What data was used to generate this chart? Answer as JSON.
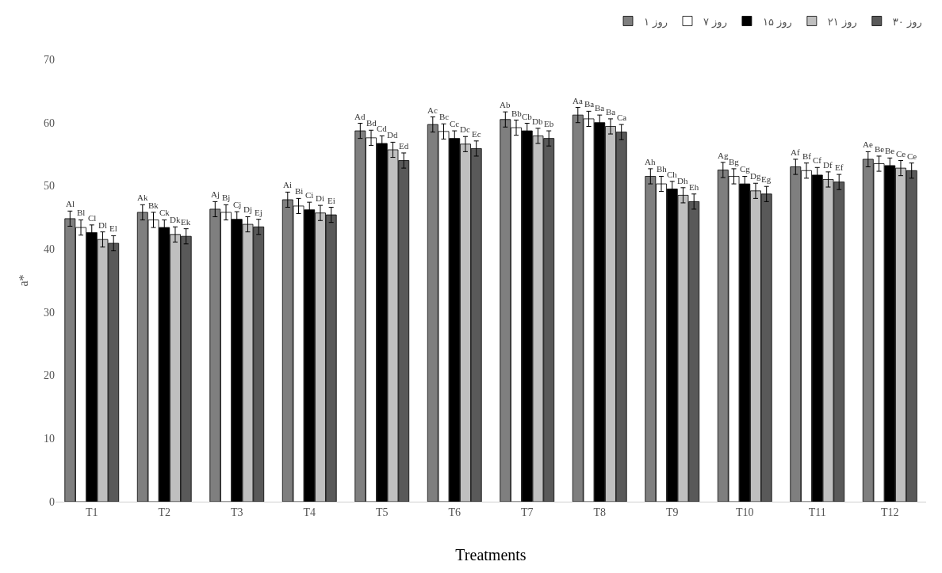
{
  "chart_data": {
    "type": "bar",
    "xlabel": "Treatments",
    "ylabel": "a*",
    "categories": [
      "T1",
      "T2",
      "T3",
      "T4",
      "T5",
      "T6",
      "T7",
      "T8",
      "T9",
      "T10",
      "T11",
      "T12"
    ],
    "ylim": [
      0,
      70
    ],
    "yticks": [
      0,
      10,
      20,
      30,
      40,
      50,
      60,
      70
    ],
    "legend": "top right",
    "series": [
      {
        "name": "روز ۱",
        "color": "#7f7f7f",
        "values": [
          44.8,
          45.8,
          46.3,
          47.8,
          58.7,
          59.7,
          60.5,
          61.2,
          51.5,
          52.5,
          53.0,
          54.2
        ],
        "errors": [
          1.2,
          1.2,
          1.2,
          1.2,
          1.2,
          1.2,
          1.2,
          1.2,
          1.2,
          1.2,
          1.2,
          1.2
        ],
        "value_labels": [
          "Al",
          "Ak",
          "Aj",
          "Ai",
          "Ad",
          "Ac",
          "Ab",
          "Aa",
          "Ah",
          "Ag",
          "Af",
          "Ae"
        ]
      },
      {
        "name": "روز ۷",
        "color": "#ffffff",
        "values": [
          43.4,
          44.6,
          45.8,
          46.8,
          57.6,
          58.6,
          59.2,
          60.6,
          50.3,
          51.5,
          52.4,
          53.5
        ],
        "errors": [
          1.2,
          1.2,
          1.2,
          1.2,
          1.2,
          1.2,
          1.2,
          1.2,
          1.2,
          1.2,
          1.2,
          1.2
        ],
        "value_labels": [
          "Bl",
          "Bk",
          "Bj",
          "Bi",
          "Bd",
          "Bc",
          "Bb",
          "Ba",
          "Bh",
          "Bg",
          "Bf",
          "Be"
        ]
      },
      {
        "name": "روز ۱۵",
        "color": "#000000",
        "values": [
          42.6,
          43.4,
          44.7,
          46.2,
          56.7,
          57.5,
          58.7,
          60.0,
          49.5,
          50.3,
          51.7,
          53.2
        ],
        "errors": [
          1.2,
          1.2,
          1.2,
          1.2,
          1.2,
          1.2,
          1.2,
          1.2,
          1.2,
          1.2,
          1.2,
          1.2
        ],
        "value_labels": [
          "Cl",
          "Ck",
          "Cj",
          "Ci",
          "Cd",
          "Cc",
          "Cb",
          "Ba",
          "Ch",
          "Cg",
          "Cf",
          "Be"
        ]
      },
      {
        "name": "روز ۲۱",
        "color": "#bfbfbf",
        "values": [
          41.5,
          42.3,
          43.9,
          45.7,
          55.7,
          56.6,
          57.9,
          59.4,
          48.5,
          49.2,
          51.0,
          52.8
        ],
        "errors": [
          1.2,
          1.2,
          1.2,
          1.2,
          1.2,
          1.2,
          1.2,
          1.2,
          1.2,
          1.2,
          1.2,
          1.2
        ],
        "value_labels": [
          "Dl",
          "Dk",
          "Dj",
          "Di",
          "Dd",
          "Dc",
          "Db",
          "Ba",
          "Dh",
          "Dg",
          "Df",
          "Ce"
        ]
      },
      {
        "name": "روز ۳۰",
        "color": "#595959",
        "values": [
          40.9,
          42.0,
          43.5,
          45.4,
          54.0,
          55.9,
          57.5,
          58.5,
          47.5,
          48.7,
          50.6,
          52.4
        ],
        "errors": [
          1.2,
          1.2,
          1.2,
          1.2,
          1.2,
          1.2,
          1.2,
          1.2,
          1.2,
          1.2,
          1.2,
          1.2
        ],
        "value_labels": [
          "El",
          "Ek",
          "Ej",
          "Ei",
          "Ed",
          "Ec",
          "Eb",
          "Ca",
          "Eh",
          "Eg",
          "Ef",
          "Ce"
        ]
      }
    ]
  }
}
